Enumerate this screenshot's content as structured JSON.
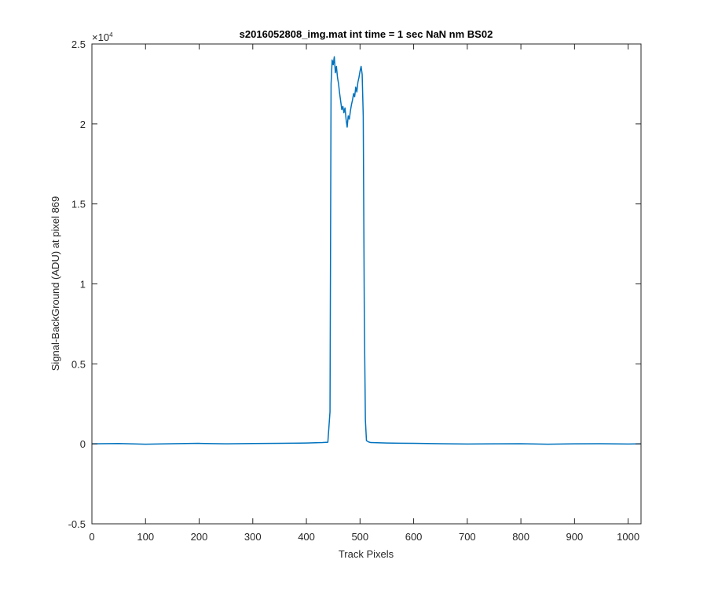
{
  "chart_data": {
    "type": "line",
    "title": "s2016052808_img.mat int time = 1 sec  NaN nm BS02",
    "xlabel": "Track Pixels",
    "ylabel": "Signal-BackGround (ADU) at pixel 869",
    "y_exponent_label": "×10",
    "y_exponent_power": "4",
    "xlim": [
      0,
      1024
    ],
    "ylim": [
      -5000,
      25000
    ],
    "grid": false,
    "line_color": "#0072bd",
    "xticks": [
      0,
      100,
      200,
      300,
      400,
      500,
      600,
      700,
      800,
      900,
      1000
    ],
    "xtick_labels": [
      "0",
      "100",
      "200",
      "300",
      "400",
      "500",
      "600",
      "700",
      "800",
      "900",
      "1000"
    ],
    "yticks": [
      -5000,
      0,
      5000,
      10000,
      15000,
      20000,
      25000
    ],
    "ytick_labels": [
      "-0.5",
      "0",
      "0.5",
      "1",
      "1.5",
      "2",
      "2.5"
    ],
    "series": [
      {
        "x": [
          0,
          50,
          100,
          150,
          200,
          250,
          300,
          350,
          400,
          430,
          440,
          444,
          446,
          448,
          450,
          452,
          454,
          456,
          458,
          460,
          462,
          464,
          466,
          468,
          470,
          472,
          474,
          476,
          478,
          480,
          482,
          484,
          486,
          488,
          490,
          492,
          494,
          496,
          498,
          500,
          502,
          504,
          506,
          508,
          510,
          512,
          516,
          520,
          550,
          600,
          650,
          700,
          750,
          800,
          850,
          900,
          950,
          1000,
          1024
        ],
        "y": [
          0,
          20,
          -20,
          10,
          30,
          0,
          20,
          30,
          50,
          80,
          100,
          2000,
          22500,
          24000,
          23700,
          24200,
          23200,
          23600,
          22900,
          22500,
          21900,
          21400,
          20900,
          21100,
          20700,
          21000,
          20300,
          19800,
          20500,
          20300,
          20800,
          21200,
          21500,
          21900,
          21700,
          22300,
          22000,
          22600,
          22900,
          23300,
          23600,
          23100,
          20500,
          8000,
          1500,
          200,
          120,
          80,
          50,
          30,
          10,
          -10,
          0,
          10,
          -20,
          0,
          10,
          -10,
          0
        ]
      }
    ]
  }
}
